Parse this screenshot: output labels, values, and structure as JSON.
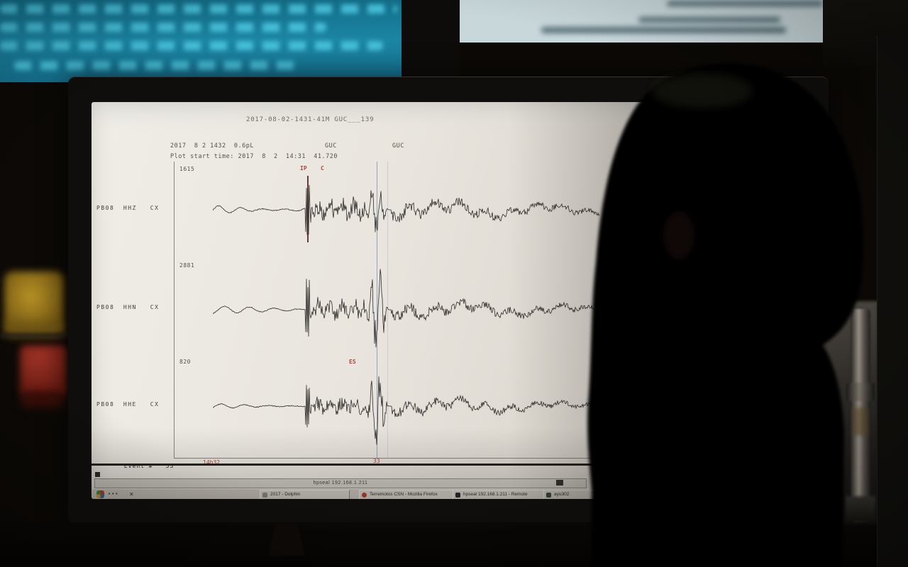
{
  "app": {
    "window_title": "2017-08-02-1431-41M GUC___139",
    "header_line1": "2017  8 2 1432  0.6pL",
    "header_station1": "GUC",
    "header_station2": "GUC",
    "header_line2": "Plot start time: 2017  8  2  14:31  41.720",
    "traces": [
      {
        "label": "PB08  HHZ   CX",
        "amplitude": "1615"
      },
      {
        "label": "PB08  HHN   CX",
        "amplitude": "2881"
      },
      {
        "label": "PB08  HHE   CX",
        "amplitude": "820"
      }
    ],
    "picks": {
      "p_label": "IP",
      "p_quality": "C",
      "s_label": "ES"
    },
    "footer": {
      "event_label": "Event #",
      "event_number": "53",
      "time_start": "14h32",
      "time_tick": "33"
    },
    "colors": {
      "pick_red": "#b2433c",
      "cursor_blue": "#8ea6c6",
      "trace_ink": "#2e2c29"
    },
    "waveforms": [
      {
        "seed": 3,
        "pre_amp": 10,
        "pre_wl": 31,
        "p_spike": 40,
        "noise_amp": 12,
        "s_amp": 40,
        "coda_amp": 15,
        "swell": 9
      },
      {
        "seed": 8,
        "pre_amp": 5,
        "pre_wl": 35,
        "p_spike": 44,
        "noise_amp": 10,
        "s_amp": 56,
        "coda_amp": 14,
        "swell": 7
      },
      {
        "seed": 15,
        "pre_amp": 4,
        "pre_wl": 33,
        "p_spike": 30,
        "noise_amp": 9,
        "s_amp": 50,
        "coda_amp": 12,
        "swell": 6
      }
    ]
  },
  "desktop": {
    "xterm_title": "hpseal 192.168.1.211",
    "menu_dots": "•••",
    "close_glyph": "✕",
    "task_buttons": [
      {
        "label": "2017 - Dolphin"
      },
      {
        "label": "Terremotos CSN - Mozilla Firefox"
      },
      {
        "label": "hpseal 192.168.1.211 - Remote"
      },
      {
        "label": "ayu302"
      }
    ]
  }
}
